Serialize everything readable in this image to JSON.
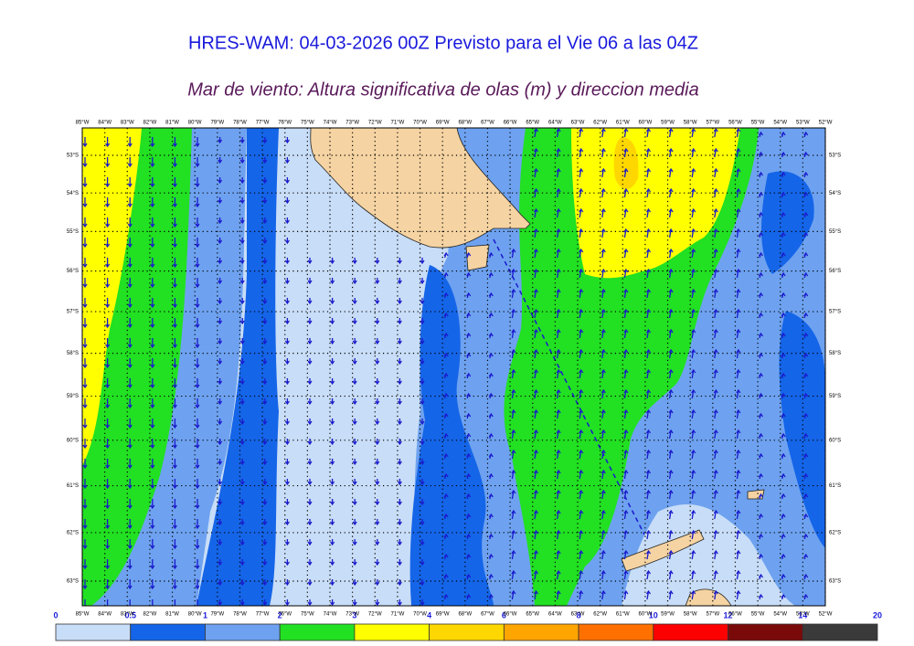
{
  "title": "HRES-WAM: 04-03-2026 00Z Previsto para el Vie 06 a las 04Z",
  "subtitle": "Mar de viento: Altura significativa de olas (m) y direccion media",
  "map": {
    "longitude_labels": [
      "85°W",
      "84°W",
      "83°W",
      "82°W",
      "81°W",
      "80°W",
      "79°W",
      "78°W",
      "77°W",
      "76°W",
      "75°W",
      "74°W",
      "73°W",
      "72°W",
      "71°W",
      "70°W",
      "69°W",
      "68°W",
      "67°W",
      "66°W",
      "65°W",
      "64°W",
      "63°W",
      "62°W",
      "61°W",
      "60°W",
      "59°W",
      "58°W",
      "57°W",
      "56°W",
      "55°W",
      "54°W",
      "53°W",
      "52°W"
    ],
    "latitude_labels": [
      "53°S",
      "54°S",
      "55°S",
      "56°S",
      "57°S",
      "58°S",
      "59°S",
      "60°S",
      "61°S",
      "62°S",
      "63°S"
    ]
  },
  "colorbar": {
    "labels": [
      "0",
      "0.5",
      "1",
      "2",
      "3",
      "4",
      "6",
      "8",
      "10",
      "12",
      "14",
      "20"
    ],
    "colors": [
      "#c8ddf7",
      "#1565e8",
      "#6ea2f0",
      "#22e022",
      "#ffff00",
      "#ffd700",
      "#ffa500",
      "#ff7000",
      "#ff0000",
      "#7a0a0a",
      "#3a3a3a"
    ]
  }
}
